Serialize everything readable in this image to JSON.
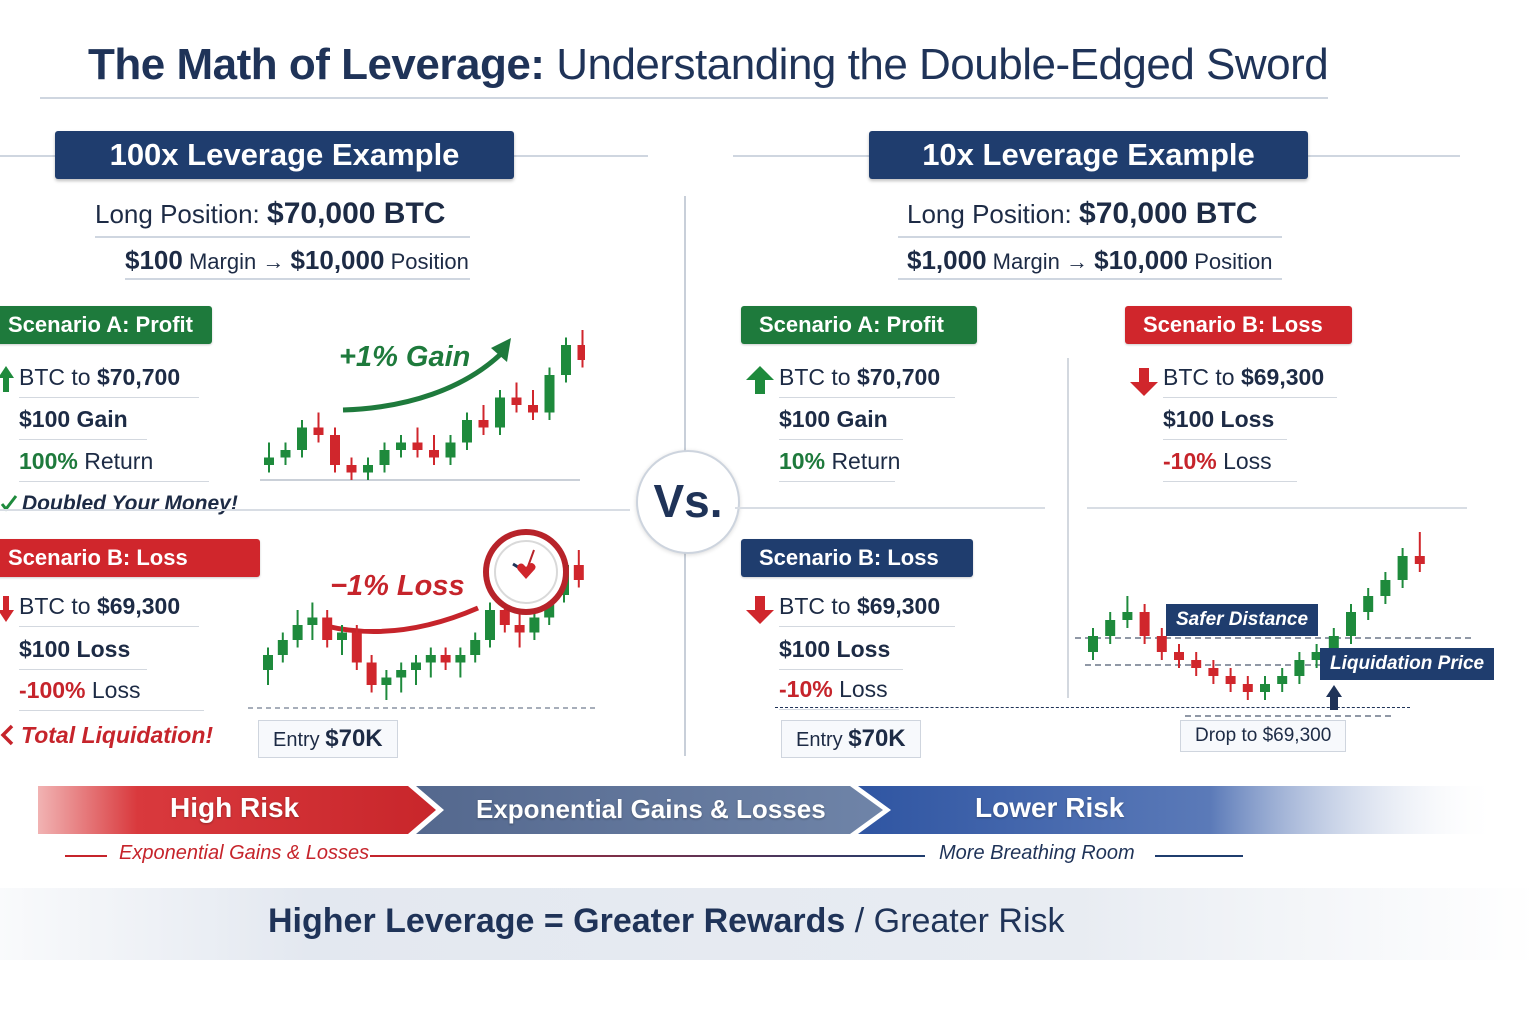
{
  "title": {
    "bold": "The Math of Leverage:",
    "rest": "Understanding the Double-Edged Sword"
  },
  "left": {
    "header": "100x Leverage Example",
    "position_label": "Long Position:",
    "position_value": "$70,000 BTC",
    "margin_value": "$100",
    "margin_label": "Margin →",
    "size_value": "$10,000",
    "size_label": "Position",
    "scenario_a": {
      "label": "Scenario A: Profit",
      "price_prefix": "BTC to",
      "price": "$70,700",
      "gain": "$100 Gain",
      "return_value": "100%",
      "return_label": "Return",
      "note": "Doubled Your Money!",
      "chart_label": "+1% Gain"
    },
    "scenario_b": {
      "label": "Scenario B: Loss",
      "price_prefix": "BTC to",
      "price": "$69,300",
      "loss": "$100 Loss",
      "return_value": "-100%",
      "return_label": "Loss",
      "note": "Total Liquidation!",
      "chart_label": "−1% Loss"
    },
    "entry_prefix": "Entry",
    "entry_value": "$70K"
  },
  "vs": "Vs.",
  "right": {
    "header": "10x Leverage Example",
    "position_label": "Long Position:",
    "position_value": "$70,000 BTC",
    "margin_value": "$1,000",
    "margin_label": "Margin →",
    "size_value": "$10,000",
    "size_label": "Position",
    "scenario_a": {
      "label": "Scenario A: Profit",
      "price_prefix": "BTC to",
      "price": "$70,700",
      "gain": "$100 Gain",
      "return_value": "10%",
      "return_label": "Return"
    },
    "scenario_b_top": {
      "label": "Scenario B: Loss",
      "price_prefix": "BTC to",
      "price": "$69,300",
      "loss": "$100 Loss",
      "return_value": "-10%",
      "return_label": "Loss"
    },
    "scenario_b": {
      "label": "Scenario B: Loss",
      "price_prefix": "BTC to",
      "price": "$69,300",
      "loss": "$100 Loss",
      "return_value": "-10%",
      "return_label": "Loss"
    },
    "entry_prefix": "Entry",
    "entry_value": "$70K",
    "safer_distance": "Safer Distance",
    "liquidation_price": "Liquidation Price",
    "drop_label": "Drop to $69,300"
  },
  "band": {
    "high": "High Risk",
    "middle": "Exponential Gains & Losses",
    "low": "Lower Risk",
    "sub_left": "Exponential Gains & Losses",
    "sub_right": "More Breathing Room"
  },
  "bottom": {
    "bold": "Higher Leverage = Greater Rewards",
    "rest": "/ Greater Risk"
  },
  "colors": {
    "navy": "#1f3d6e",
    "green": "#1e7a3c",
    "red": "#d0262c"
  },
  "chart_data": [
    {
      "type": "candlestick",
      "title": "+1% Gain",
      "ohlc": [
        [
          100,
          103,
          99,
          101
        ],
        [
          101,
          103,
          100,
          102
        ],
        [
          102,
          106,
          101,
          105
        ],
        [
          105,
          107,
          103,
          104
        ],
        [
          104,
          105,
          99,
          100
        ],
        [
          100,
          101,
          98,
          99
        ],
        [
          99,
          101,
          98,
          100
        ],
        [
          100,
          103,
          99,
          102
        ],
        [
          102,
          104,
          101,
          103
        ],
        [
          103,
          105,
          101,
          102
        ],
        [
          102,
          104,
          100,
          101
        ],
        [
          101,
          104,
          100,
          103
        ],
        [
          103,
          107,
          102,
          106
        ],
        [
          106,
          108,
          104,
          105
        ],
        [
          105,
          110,
          104,
          109
        ],
        [
          109,
          111,
          107,
          108
        ],
        [
          108,
          110,
          106,
          107
        ],
        [
          107,
          113,
          106,
          112
        ],
        [
          112,
          117,
          111,
          116
        ],
        [
          116,
          118,
          113,
          114
        ]
      ]
    },
    {
      "type": "candlestick",
      "title": "−1% Loss",
      "ohlc": [
        [
          100,
          103,
          98,
          102
        ],
        [
          102,
          105,
          101,
          104
        ],
        [
          104,
          108,
          103,
          106
        ],
        [
          106,
          109,
          104,
          107
        ],
        [
          107,
          108,
          103,
          104
        ],
        [
          104,
          106,
          102,
          105
        ],
        [
          105,
          106,
          100,
          101
        ],
        [
          101,
          102,
          97,
          98
        ],
        [
          98,
          100,
          96,
          99
        ],
        [
          99,
          101,
          97,
          100
        ],
        [
          100,
          102,
          98,
          101
        ],
        [
          101,
          103,
          99,
          102
        ],
        [
          102,
          103,
          100,
          101
        ],
        [
          101,
          103,
          99,
          102
        ],
        [
          102,
          105,
          101,
          104
        ],
        [
          104,
          109,
          103,
          108
        ],
        [
          108,
          110,
          105,
          106
        ],
        [
          106,
          108,
          103,
          105
        ],
        [
          105,
          108,
          104,
          107
        ],
        [
          107,
          111,
          106,
          110
        ],
        [
          110,
          115,
          109,
          114
        ],
        [
          114,
          116,
          111,
          112
        ]
      ]
    },
    {
      "type": "candlestick",
      "title": "Safer Distance",
      "ohlc": [
        [
          100,
          103,
          99,
          102
        ],
        [
          102,
          105,
          101,
          104
        ],
        [
          104,
          107,
          103,
          105
        ],
        [
          105,
          106,
          101,
          102
        ],
        [
          102,
          103,
          99,
          100
        ],
        [
          100,
          101,
          98,
          99
        ],
        [
          99,
          100,
          97,
          98
        ],
        [
          98,
          99,
          96,
          97
        ],
        [
          97,
          98,
          95,
          96
        ],
        [
          96,
          97,
          94,
          95
        ],
        [
          95,
          97,
          94,
          96
        ],
        [
          96,
          98,
          95,
          97
        ],
        [
          97,
          100,
          96,
          99
        ],
        [
          99,
          101,
          98,
          100
        ],
        [
          100,
          103,
          99,
          102
        ],
        [
          102,
          106,
          101,
          105
        ],
        [
          105,
          108,
          104,
          107
        ],
        [
          107,
          110,
          106,
          109
        ],
        [
          109,
          113,
          108,
          112
        ],
        [
          112,
          115,
          110,
          111
        ]
      ]
    }
  ]
}
